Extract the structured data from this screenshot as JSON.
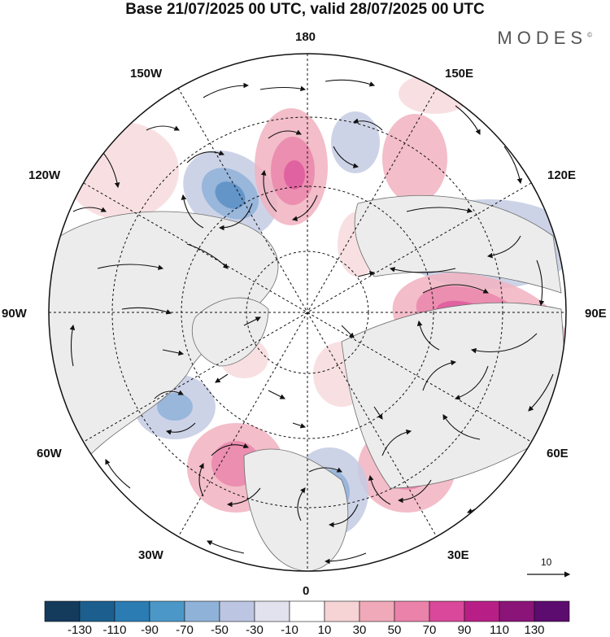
{
  "title": "Base 21/07/2025 00 UTC, valid 28/07/2025 00 UTC",
  "brand": "MODES",
  "brand_mark": "©",
  "longitudes": {
    "top": "180",
    "top_left": "150W",
    "top_right": "150E",
    "upper_left": "120W",
    "upper_right": "120E",
    "left": "90W",
    "right": "90E",
    "lower_left": "60W",
    "lower_right": "60E",
    "bottom_left": "30W",
    "bottom_right": "30E",
    "bottom": "0"
  },
  "reference_vector": {
    "label": "10"
  },
  "colorbar": {
    "labels": [
      "-130",
      "-110",
      "-90",
      "-70",
      "-50",
      "-30",
      "-10",
      "10",
      "30",
      "50",
      "70",
      "90",
      "110",
      "130"
    ],
    "colors": [
      "#143a5c",
      "#1c5f8e",
      "#2b7cb3",
      "#4b98c8",
      "#8fb2d8",
      "#bcc6e2",
      "#e2e2ef",
      "#ffffff",
      "#f6d3d4",
      "#f0a9b8",
      "#ea82aa",
      "#d9489a",
      "#b81f86",
      "#8a1478",
      "#5c0b6e"
    ]
  },
  "anomaly_colors": {
    "neg_light": "#e3e3ef",
    "neg_mid": "#c4cbe3",
    "neg_strong": "#8fb0d8",
    "neg_core": "#5b8fc4",
    "pos_light": "#f7dadd",
    "pos_mid": "#f1b1bf",
    "pos_strong": "#ea86ab",
    "pos_core": "#de5a9e",
    "land": "#ececec",
    "coast": "#6b6b6b"
  }
}
